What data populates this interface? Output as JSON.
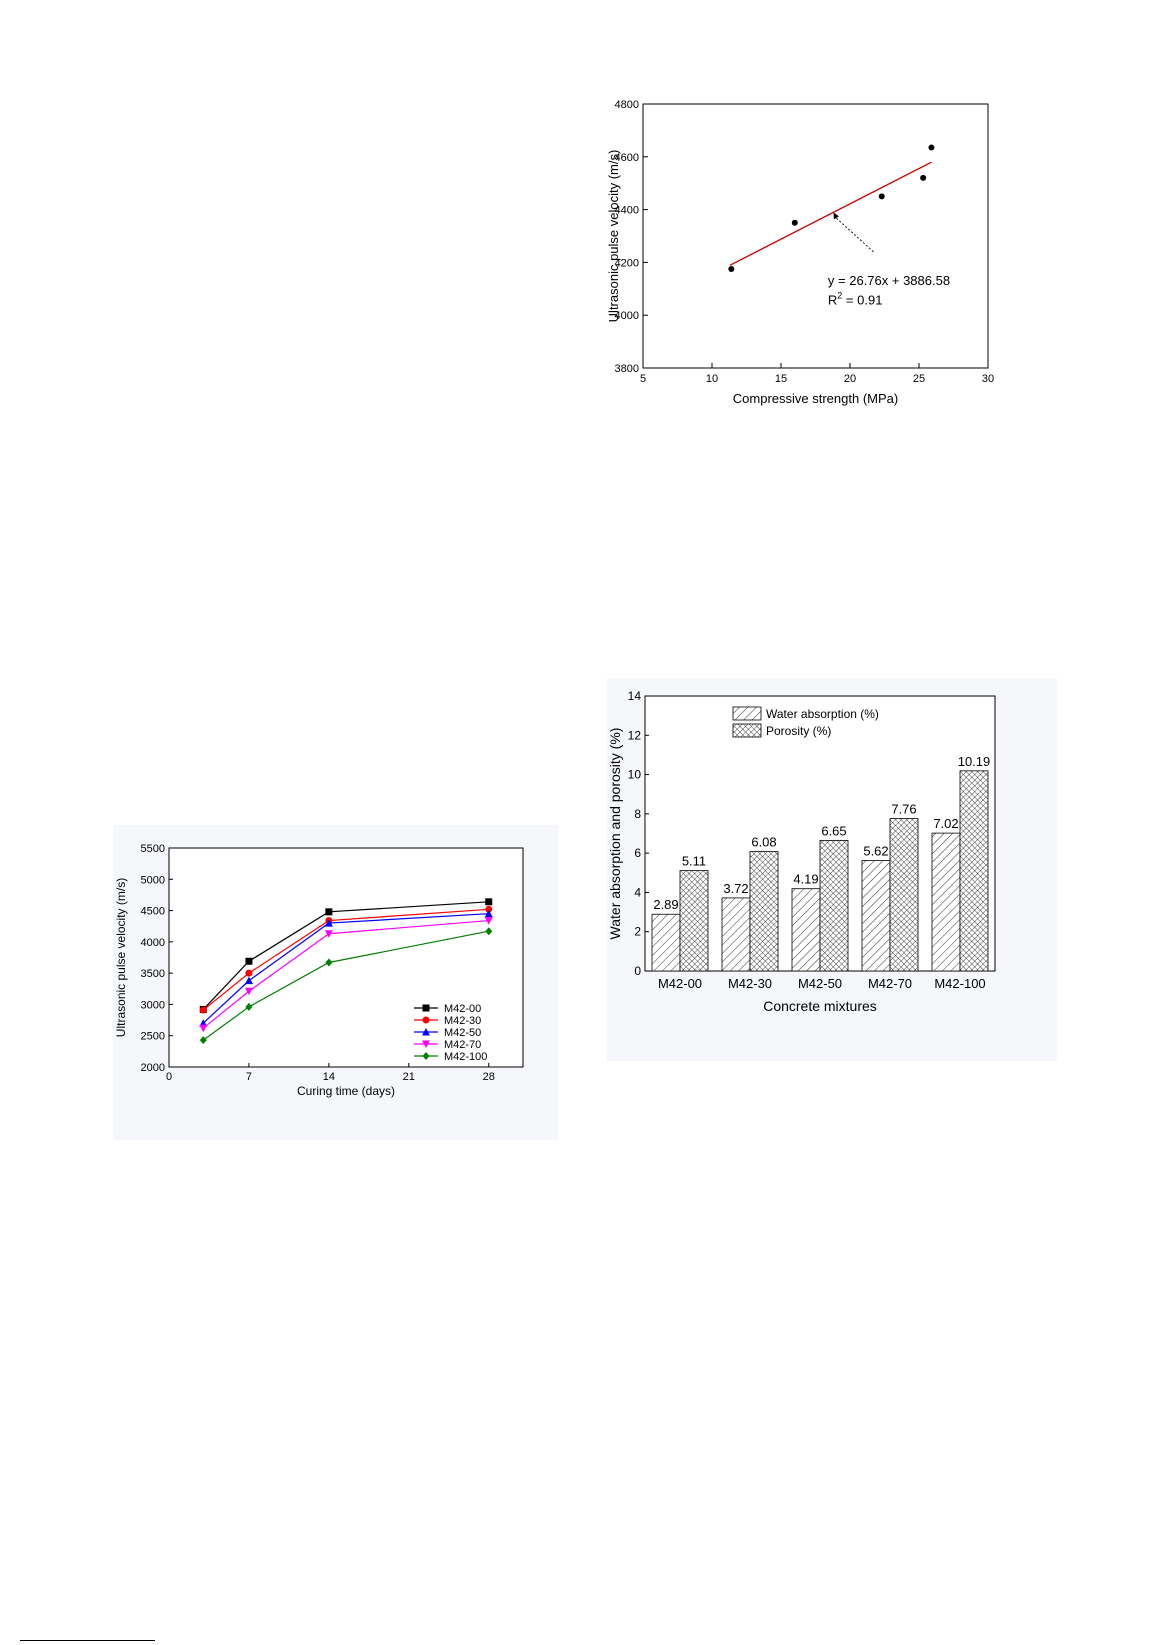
{
  "page": {
    "footnote_rule": ""
  },
  "chart_data": [
    {
      "id": "upv-vs-strength",
      "type": "scatter",
      "xlabel": "Compressive strength (MPa)",
      "ylabel": "Ultrasonic pulse velocity (m/s)",
      "xlim": [
        5,
        30
      ],
      "ylim": [
        3800,
        4800
      ],
      "xticks": [
        5,
        10,
        15,
        20,
        25,
        30
      ],
      "yticks": [
        3800,
        4000,
        4200,
        4400,
        4600,
        4800
      ],
      "points": [
        {
          "x": 11.4,
          "y": 4175
        },
        {
          "x": 16.0,
          "y": 4350
        },
        {
          "x": 22.3,
          "y": 4450
        },
        {
          "x": 25.3,
          "y": 4520
        },
        {
          "x": 25.9,
          "y": 4635
        }
      ],
      "fit": {
        "slope": 26.76,
        "intercept": 3886.58,
        "x_range": [
          11.3,
          25.9
        ]
      },
      "annotation": {
        "equation": "y = 26.76x + 3886.58",
        "r2_prefix": "R",
        "r2_sup": "2",
        "r2_value": " = 0.91"
      },
      "colors": {
        "points": "#000000",
        "fit": "#cc0000"
      }
    },
    {
      "id": "upv-vs-curing",
      "type": "line",
      "xlabel": "Curing time (days)",
      "ylabel": "Ultrasonic pulse velocity (m/s)",
      "xlim": [
        0,
        31
      ],
      "ylim": [
        2000,
        5500
      ],
      "xticks": [
        0,
        7,
        14,
        21,
        28
      ],
      "yticks": [
        2000,
        2500,
        3000,
        3500,
        4000,
        4500,
        5000,
        5500
      ],
      "x": [
        3,
        7,
        14,
        28
      ],
      "series": [
        {
          "name": "M42-00",
          "color": "#000000",
          "marker": "square",
          "values": [
            2920,
            3690,
            4480,
            4640
          ]
        },
        {
          "name": "M42-30",
          "color": "#ff0000",
          "marker": "circle",
          "values": [
            2910,
            3500,
            4340,
            4520
          ]
        },
        {
          "name": "M42-50",
          "color": "#0000ff",
          "marker": "triangle-up",
          "values": [
            2700,
            3380,
            4300,
            4450
          ]
        },
        {
          "name": "M42-70",
          "color": "#ff00ff",
          "marker": "triangle-down",
          "values": [
            2620,
            3210,
            4130,
            4340
          ]
        },
        {
          "name": "M42-100",
          "color": "#008000",
          "marker": "diamond",
          "values": [
            2430,
            2960,
            3670,
            4170
          ]
        }
      ],
      "legend_position": "bottom-right"
    },
    {
      "id": "absorption-porosity",
      "type": "bar",
      "xlabel": "Concrete mixtures",
      "ylabel": "Water absorption and porosity (%)",
      "ylim": [
        0,
        14
      ],
      "yticks": [
        0,
        2,
        4,
        6,
        8,
        10,
        12,
        14
      ],
      "categories": [
        "M42-00",
        "M42-30",
        "M42-50",
        "M42-70",
        "M42-100"
      ],
      "series": [
        {
          "name": "Water absorption (%)",
          "pattern": "diagonal-hatch",
          "values": [
            2.89,
            3.72,
            4.19,
            5.62,
            7.02
          ]
        },
        {
          "name": "Porosity (%)",
          "pattern": "cross-hatch",
          "values": [
            5.11,
            6.08,
            6.65,
            7.76,
            10.19
          ]
        }
      ],
      "value_labels": [
        [
          "2.89",
          "3.72",
          "4.19",
          "5.62",
          "7.02"
        ],
        [
          "5.11",
          "6.08",
          "6.65",
          "7.76",
          "10.19"
        ]
      ],
      "legend_position": "top-center"
    }
  ]
}
